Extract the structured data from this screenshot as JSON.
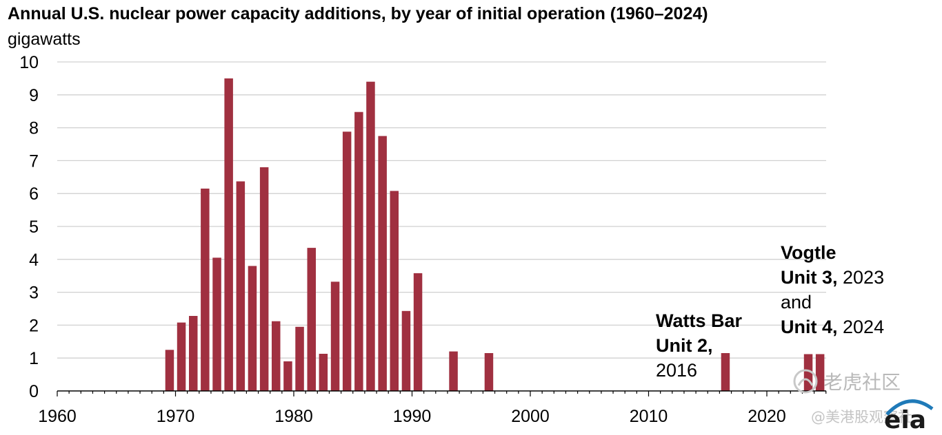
{
  "chart_data": {
    "type": "bar",
    "title": "Annual U.S. nuclear power capacity additions, by year of initial operation (1960–2024)",
    "ylabel": "gigawatts",
    "xlim": [
      1960,
      2025
    ],
    "ylim": [
      0,
      10
    ],
    "yticks": [
      "0",
      "1",
      "2",
      "3",
      "4",
      "5",
      "6",
      "7",
      "8",
      "9",
      "10"
    ],
    "xticks": [
      "1960",
      "1970",
      "1980",
      "1990",
      "2000",
      "2010",
      "2020"
    ],
    "grid": true,
    "color": "#a03040",
    "years": [
      1969,
      1970,
      1971,
      1972,
      1973,
      1974,
      1975,
      1976,
      1977,
      1978,
      1979,
      1980,
      1981,
      1982,
      1983,
      1984,
      1985,
      1986,
      1987,
      1988,
      1989,
      1990,
      1993,
      1996,
      2016,
      2023,
      2024
    ],
    "values": [
      1.25,
      2.08,
      2.28,
      6.15,
      4.05,
      9.5,
      6.37,
      3.8,
      6.8,
      2.12,
      0.9,
      1.95,
      4.35,
      1.13,
      3.32,
      7.88,
      8.48,
      9.4,
      7.75,
      6.08,
      2.43,
      3.58,
      1.2,
      1.15,
      1.15,
      1.12,
      1.12
    ],
    "annotations": {
      "watts_bar": {
        "bold1": "Watts Bar",
        "bold2": "Unit 2,",
        "year": "2016"
      },
      "vogtle": {
        "bold1": "Vogtle",
        "bold2": "Unit 3,",
        "year3": " 2023",
        "and": "and",
        "bold3": "Unit 4,",
        "year4": " 2024"
      }
    }
  },
  "watermark": {
    "brand": "老虎社区",
    "handle": "@美港股观察社",
    "logo_text": "eia"
  }
}
